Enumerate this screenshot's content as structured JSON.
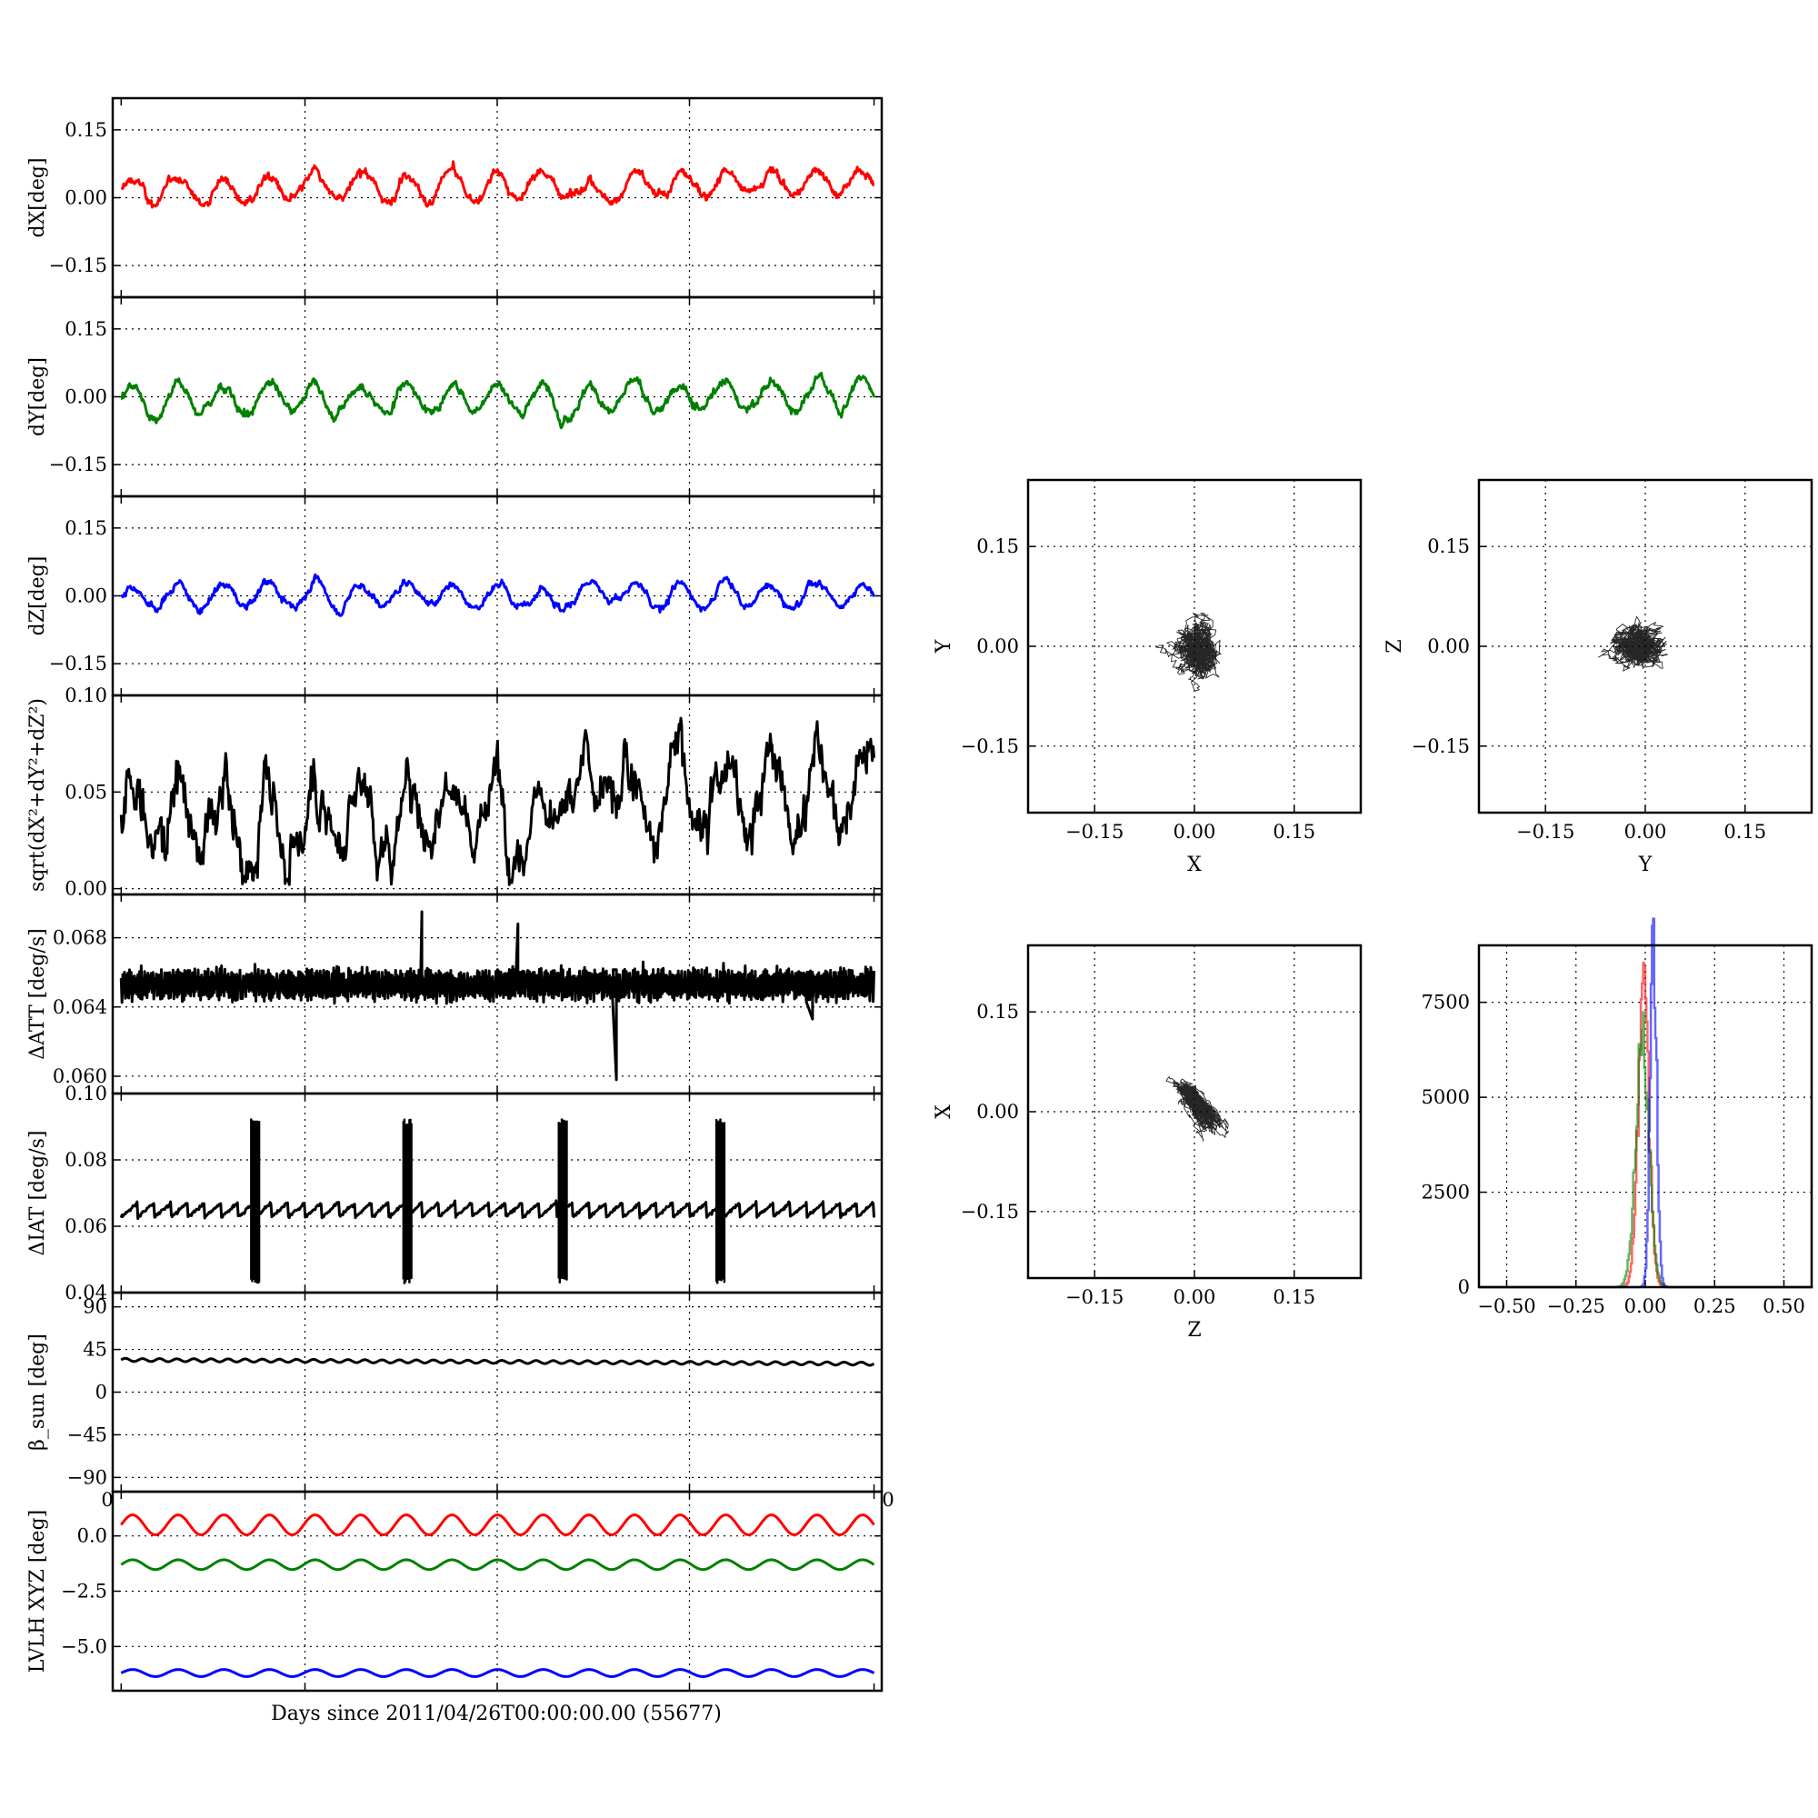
{
  "chart_data": [
    {
      "type": "line",
      "panel": "time-series",
      "xlabel": "Days since 2011/04/26T00:00:00.00 (55677)",
      "rows": [
        {
          "id": "dX",
          "ylabel": "dX[deg]",
          "ylim": [
            -0.22,
            0.22
          ],
          "yticks": [
            0.15,
            0.0,
            -0.15
          ],
          "ytick_labels": [
            "0.15",
            "0.00",
            "−0.15"
          ],
          "series": [
            {
              "color": "#ff0000",
              "kind": "attitude",
              "mean": 0.012,
              "amp": 0.028,
              "periods": 16.5,
              "noise": 0.014,
              "trend": 0.025
            }
          ]
        },
        {
          "id": "dY",
          "ylabel": "dY[deg]",
          "ylim": [
            -0.22,
            0.22
          ],
          "yticks": [
            0.15,
            0.0,
            -0.15
          ],
          "ytick_labels": [
            "0.15",
            "0.00",
            "−0.15"
          ],
          "series": [
            {
              "color": "#008000",
              "kind": "attitude",
              "mean": -0.005,
              "amp": 0.032,
              "periods": 16.5,
              "noise": 0.014,
              "trend": 0.01
            }
          ]
        },
        {
          "id": "dZ",
          "ylabel": "dZ[deg]",
          "ylim": [
            -0.22,
            0.22
          ],
          "yticks": [
            0.15,
            0.0,
            -0.15
          ],
          "ytick_labels": [
            "0.15",
            "0.00",
            "−0.15"
          ],
          "series": [
            {
              "color": "#0000ff",
              "kind": "attitude",
              "mean": 0.003,
              "amp": 0.028,
              "periods": 16.5,
              "noise": 0.011,
              "trend": 0.0
            }
          ]
        },
        {
          "id": "dR",
          "ylabel": "sqrt(dX²+dY²+dZ²)",
          "ylim": [
            -0.003,
            0.1
          ],
          "yticks": [
            0.1,
            0.05,
            0.0
          ],
          "ytick_labels": [
            "0.10",
            "0.05",
            "0.00"
          ],
          "series": [
            {
              "color": "#000000",
              "kind": "magnitude",
              "mean": 0.038,
              "amp": 0.016,
              "periods": 16.5,
              "noise": 0.012,
              "trend": 0.02
            }
          ]
        },
        {
          "id": "dATT",
          "ylabel": "ΔATT [deg/s]",
          "ylim": [
            0.059,
            0.0705
          ],
          "yticks": [
            0.068,
            0.064,
            0.06
          ],
          "ytick_labels": [
            "0.068",
            "0.064",
            "0.060"
          ],
          "series": [
            {
              "color": "#000000",
              "kind": "band",
              "mean": 0.0653,
              "amp": 0.0008,
              "periods": 48,
              "noise": 0.0003,
              "trend": 0.0,
              "spikes": [
                [
                  0.402,
                  0.0695
                ],
                [
                  0.527,
                  0.0688
                ],
                [
                  0.655,
                  0.0598
                ],
                [
                  0.91,
                  0.0633
                ]
              ]
            }
          ]
        },
        {
          "id": "dIAT",
          "ylabel": "ΔIAT [deg/s]",
          "ylim": [
            0.04,
            0.1
          ],
          "yticks": [
            0.1,
            0.08,
            0.06,
            0.04
          ],
          "ytick_labels": [
            "0.10",
            "0.08",
            "0.06",
            "0.04"
          ],
          "series": [
            {
              "color": "#000000",
              "kind": "sawtooth",
              "mean": 0.065,
              "amp": 0.0022,
              "periods": 45,
              "noise": 0.0004,
              "trend": 0.0,
              "bursts": [
                0.18,
                0.378,
                0.58,
                0.785
              ],
              "burst_low": 0.0425,
              "burst_high": 0.0925
            }
          ]
        },
        {
          "id": "beta",
          "ylabel": "β_sun [deg]",
          "ylim": [
            -105,
            105
          ],
          "yticks": [
            90,
            45,
            0,
            -45,
            -90
          ],
          "ytick_labels": [
            "90",
            "45",
            "0",
            "−45",
            "−90"
          ],
          "series": [
            {
              "color": "#000000",
              "kind": "sine",
              "mean": 34,
              "amp": 1.6,
              "periods": 44,
              "noise": 0.1,
              "trend": -4.0
            }
          ]
        },
        {
          "id": "lvlh",
          "ylabel": "LVLH XYZ [deg]",
          "ylim": [
            -7.0,
            2.0
          ],
          "yticks": [
            0.0,
            -2.5,
            -5.0
          ],
          "ytick_labels": [
            "0.0",
            "−2.5",
            "−5.0"
          ],
          "series": [
            {
              "color": "#ff0000",
              "kind": "sine",
              "mean": 0.5,
              "amp": 0.45,
              "periods": 16.5,
              "noise": 0.0,
              "trend": 0.0
            },
            {
              "color": "#008000",
              "kind": "sine",
              "mean": -1.3,
              "amp": 0.22,
              "periods": 16.5,
              "noise": 0.0,
              "trend": 0.0
            },
            {
              "color": "#0000ff",
              "kind": "sine",
              "mean": -6.2,
              "amp": 0.16,
              "periods": 16.5,
              "noise": 0.0,
              "trend": 0.0
            }
          ]
        }
      ],
      "stray_tick_labels": {
        "left": "0",
        "right": "0"
      }
    },
    {
      "type": "scatter",
      "panel": "XY",
      "xlabel": "X",
      "ylabel": "Y",
      "xlim": [
        -0.25,
        0.25
      ],
      "ylim": [
        -0.25,
        0.25
      ],
      "ticks": [
        -0.15,
        0.0,
        0.15
      ],
      "tick_labels": [
        "−0.15",
        "0.00",
        "0.15"
      ],
      "cloud": {
        "cx": 0.012,
        "cy": -0.005,
        "rx": 0.028,
        "ry": 0.03,
        "rho": 0.05
      }
    },
    {
      "type": "scatter",
      "panel": "YZ",
      "xlabel": "Y",
      "ylabel": "Z",
      "xlim": [
        -0.25,
        0.25
      ],
      "ylim": [
        -0.25,
        0.25
      ],
      "ticks": [
        -0.15,
        0.0,
        0.15
      ],
      "tick_labels": [
        "−0.15",
        "0.00",
        "0.15"
      ],
      "cloud": {
        "cx": -0.005,
        "cy": 0.003,
        "rx": 0.03,
        "ry": 0.026,
        "rho": 0.15
      }
    },
    {
      "type": "scatter",
      "panel": "ZX",
      "xlabel": "Z",
      "ylabel": "X",
      "xlim": [
        -0.25,
        0.25
      ],
      "ylim": [
        -0.25,
        0.25
      ],
      "ticks": [
        -0.15,
        0.0,
        0.15
      ],
      "tick_labels": [
        "−0.15",
        "0.00",
        "0.15"
      ],
      "cloud": {
        "cx": 0.005,
        "cy": 0.015,
        "rx": 0.025,
        "ry": 0.03,
        "rho": -0.7
      }
    },
    {
      "type": "histogram",
      "panel": "hist",
      "xlim": [
        -0.6,
        0.6
      ],
      "ylim": [
        0,
        9000
      ],
      "xticks": [
        -0.5,
        -0.25,
        0.0,
        0.25,
        0.5
      ],
      "xtick_labels": [
        "−0.50",
        "−0.25",
        "0.00",
        "0.25",
        "0.50"
      ],
      "yticks": [
        0,
        2500,
        5000,
        7500
      ],
      "ytick_labels": [
        "0",
        "2500",
        "5000",
        "7500"
      ],
      "series": [
        {
          "color": "#ff0000",
          "center": -0.008,
          "sigma": 0.02,
          "peak": 7500
        },
        {
          "color": "#008000",
          "center": -0.012,
          "sigma": 0.024,
          "peak": 6500
        },
        {
          "color": "#0000ff",
          "center": 0.028,
          "sigma": 0.012,
          "peak": 8900
        }
      ]
    }
  ]
}
